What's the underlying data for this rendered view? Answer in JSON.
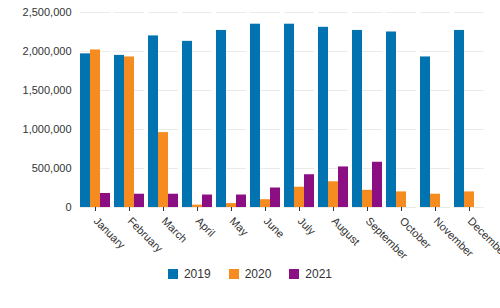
{
  "chart_data": {
    "type": "bar",
    "categories": [
      "January",
      "February",
      "March",
      "April",
      "May",
      "June",
      "July",
      "August",
      "September",
      "October",
      "November",
      "December"
    ],
    "series": [
      {
        "name": "2019",
        "color": "#0073b0",
        "values": [
          1970000,
          1950000,
          2200000,
          2130000,
          2270000,
          2350000,
          2350000,
          2310000,
          2270000,
          2250000,
          1930000,
          2270000
        ]
      },
      {
        "name": "2020",
        "color": "#f68b1f",
        "values": [
          2020000,
          1930000,
          960000,
          30000,
          50000,
          100000,
          260000,
          330000,
          220000,
          200000,
          170000,
          200000
        ]
      },
      {
        "name": "2021",
        "color": "#8b0f83",
        "values": [
          180000,
          170000,
          170000,
          160000,
          160000,
          250000,
          420000,
          520000,
          580000,
          null,
          null,
          null
        ]
      }
    ],
    "ylim": [
      0,
      2500000
    ],
    "yticks": [
      0,
      {
        "value": 500000,
        "label": "500,000"
      },
      {
        "value": 1000000,
        "label": "1,000,000"
      },
      {
        "value": 1500000,
        "label": "1,500,000"
      },
      {
        "value": 2000000,
        "label": "2,000,000"
      },
      {
        "value": 2500000,
        "label": "2,500,000"
      }
    ],
    "grid": true,
    "legend": "bottom"
  }
}
